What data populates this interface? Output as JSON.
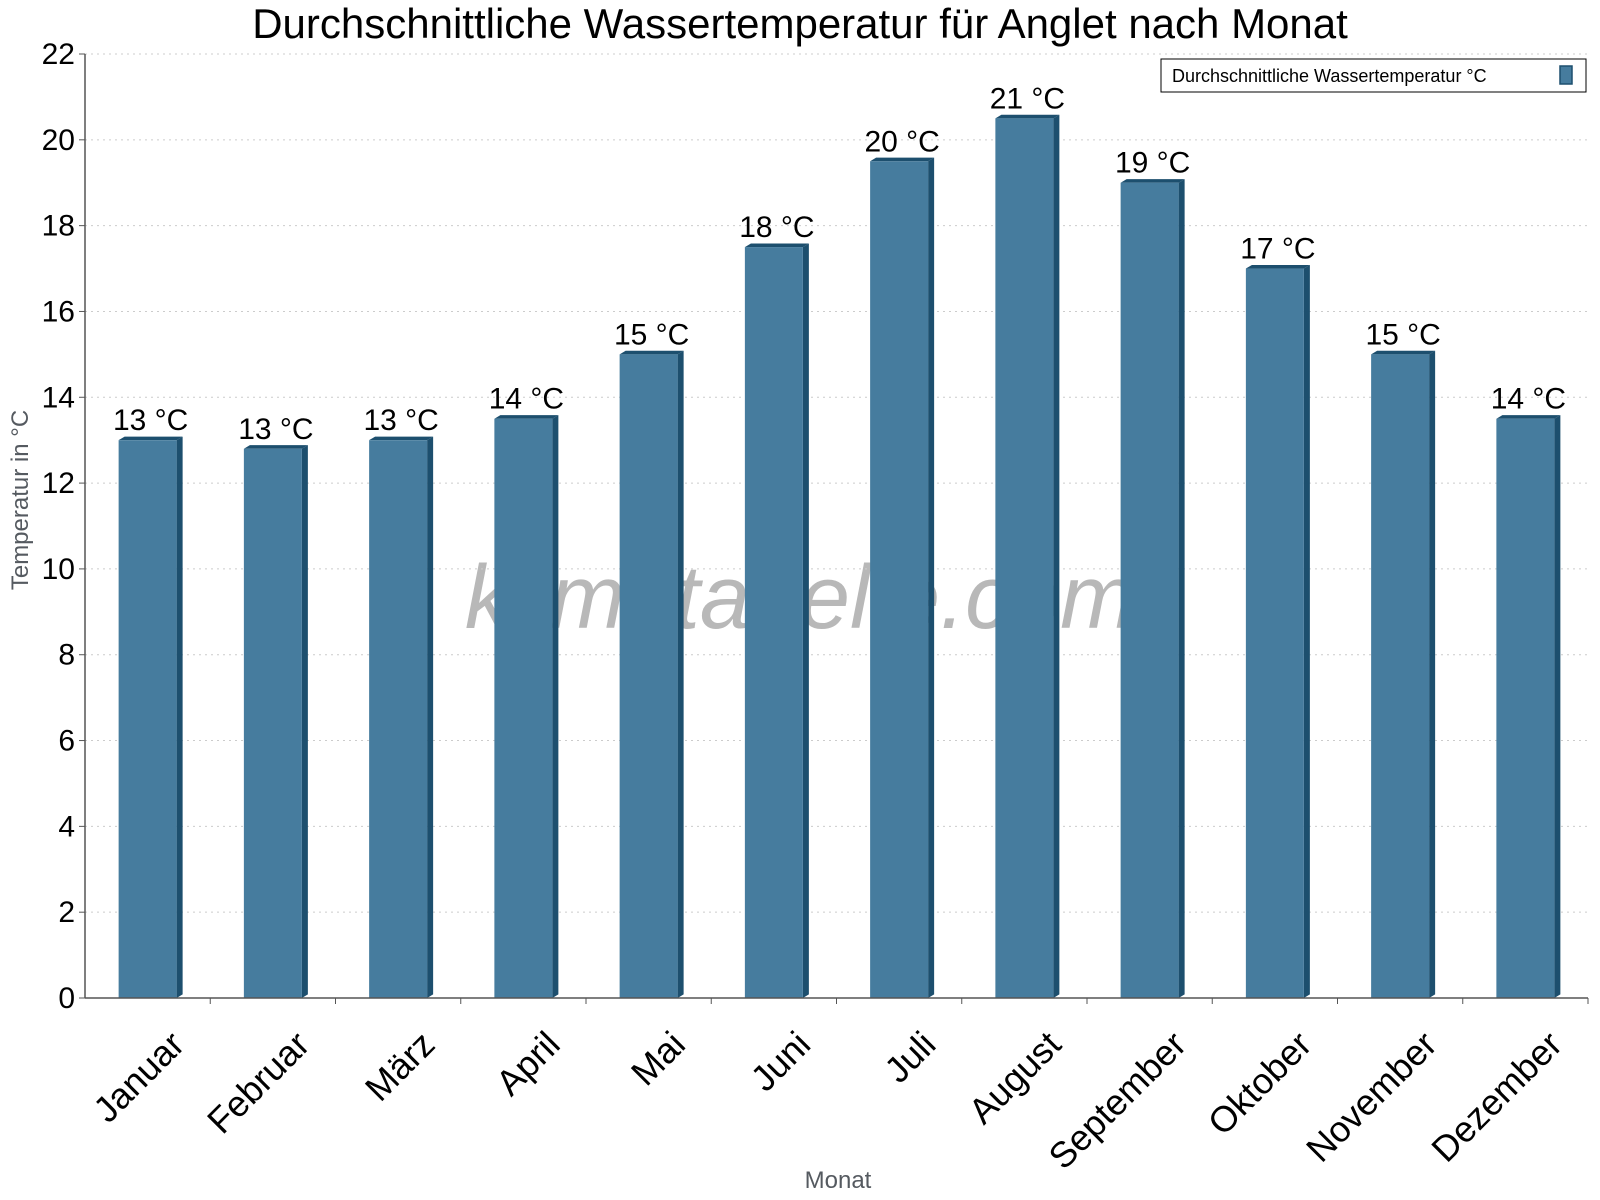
{
  "chart_data": {
    "type": "bar",
    "title": "Durchschnittliche Wassertemperatur für Anglet nach Monat",
    "xlabel": "Monat",
    "ylabel": "Temperatur in °C",
    "ylim": [
      0,
      22
    ],
    "yticks": [
      0,
      2,
      4,
      6,
      8,
      10,
      12,
      14,
      16,
      18,
      20,
      22
    ],
    "grid": true,
    "legend_position": "top-right",
    "categories": [
      "Januar",
      "Februar",
      "März",
      "April",
      "Mai",
      "Juni",
      "Juli",
      "August",
      "September",
      "Oktober",
      "November",
      "Dezember"
    ],
    "series": [
      {
        "name": "Durchschnittliche Wassertemperatur °C",
        "color": "#467c9e",
        "values": [
          13.0,
          12.8,
          13.0,
          13.5,
          15.0,
          17.5,
          19.5,
          20.5,
          19.0,
          17.0,
          15.0,
          13.5
        ],
        "data_labels": [
          "13 °C",
          "13 °C",
          "13 °C",
          "14 °C",
          "15 °C",
          "18 °C",
          "20 °C",
          "21 °C",
          "19 °C",
          "17 °C",
          "15 °C",
          "14 °C"
        ]
      }
    ]
  },
  "watermark": "klimatabelle.com",
  "colors": {
    "bar": "#467c9e",
    "bar_shade": "#1d4f6e",
    "grid": "#cccccc"
  }
}
